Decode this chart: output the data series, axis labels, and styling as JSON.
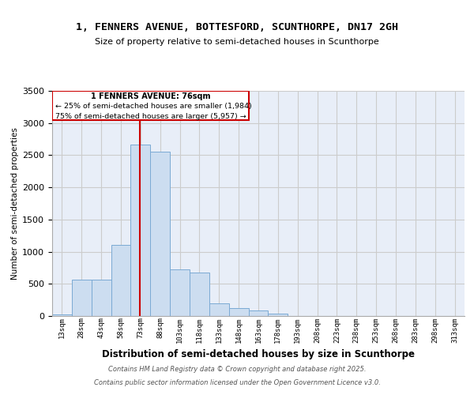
{
  "title_line1": "1, FENNERS AVENUE, BOTTESFORD, SCUNTHORPE, DN17 2GH",
  "title_line2": "Size of property relative to semi-detached houses in Scunthorpe",
  "xlabel": "Distribution of semi-detached houses by size in Scunthorpe",
  "ylabel": "Number of semi-detached properties",
  "bins": [
    "13sqm",
    "28sqm",
    "43sqm",
    "58sqm",
    "73sqm",
    "88sqm",
    "103sqm",
    "118sqm",
    "133sqm",
    "148sqm",
    "163sqm",
    "178sqm",
    "193sqm",
    "208sqm",
    "223sqm",
    "238sqm",
    "253sqm",
    "268sqm",
    "283sqm",
    "298sqm",
    "313sqm"
  ],
  "values": [
    25,
    570,
    570,
    1100,
    2660,
    2560,
    720,
    670,
    200,
    120,
    80,
    40,
    5,
    0,
    0,
    0,
    0,
    0,
    0,
    0,
    0
  ],
  "bar_color": "#ccddf0",
  "bar_edgecolor": "#7baad4",
  "red_line_label": "1 FENNERS AVENUE: 76sqm",
  "annotation_smaller": "← 25% of semi-detached houses are smaller (1,984)",
  "annotation_larger": "75% of semi-detached houses are larger (5,957) →",
  "vline_color": "#cc0000",
  "box_edgecolor": "#cc0000",
  "ylim": [
    0,
    3500
  ],
  "yticks": [
    0,
    500,
    1000,
    1500,
    2000,
    2500,
    3000,
    3500
  ],
  "grid_color": "#cccccc",
  "background_color": "#e8eef8",
  "footer_line1": "Contains HM Land Registry data © Crown copyright and database right 2025.",
  "footer_line2": "Contains public sector information licensed under the Open Government Licence v3.0."
}
